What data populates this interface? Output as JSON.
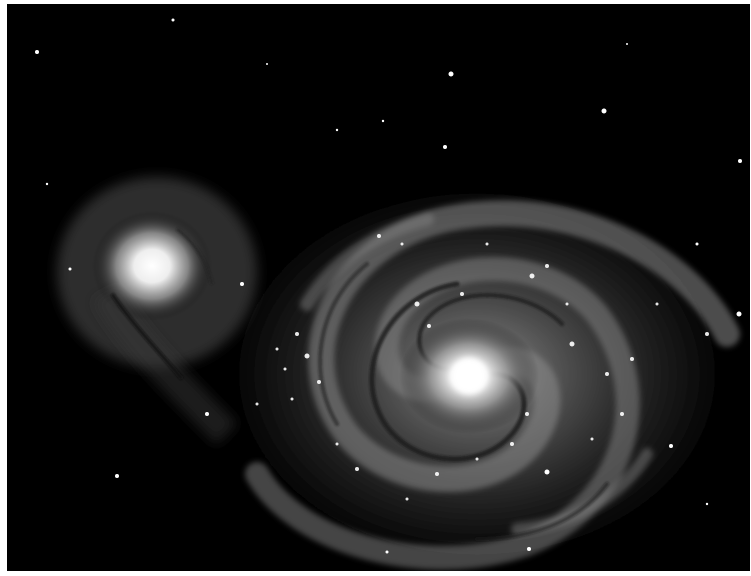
{
  "image": {
    "subject": "spiral-galaxy-with-companion",
    "palette": {
      "background": "#ffffff",
      "sky": "#000000",
      "core": "#ffffff",
      "arm": "#9a9a9a",
      "dust": "#1a1a1a"
    }
  }
}
